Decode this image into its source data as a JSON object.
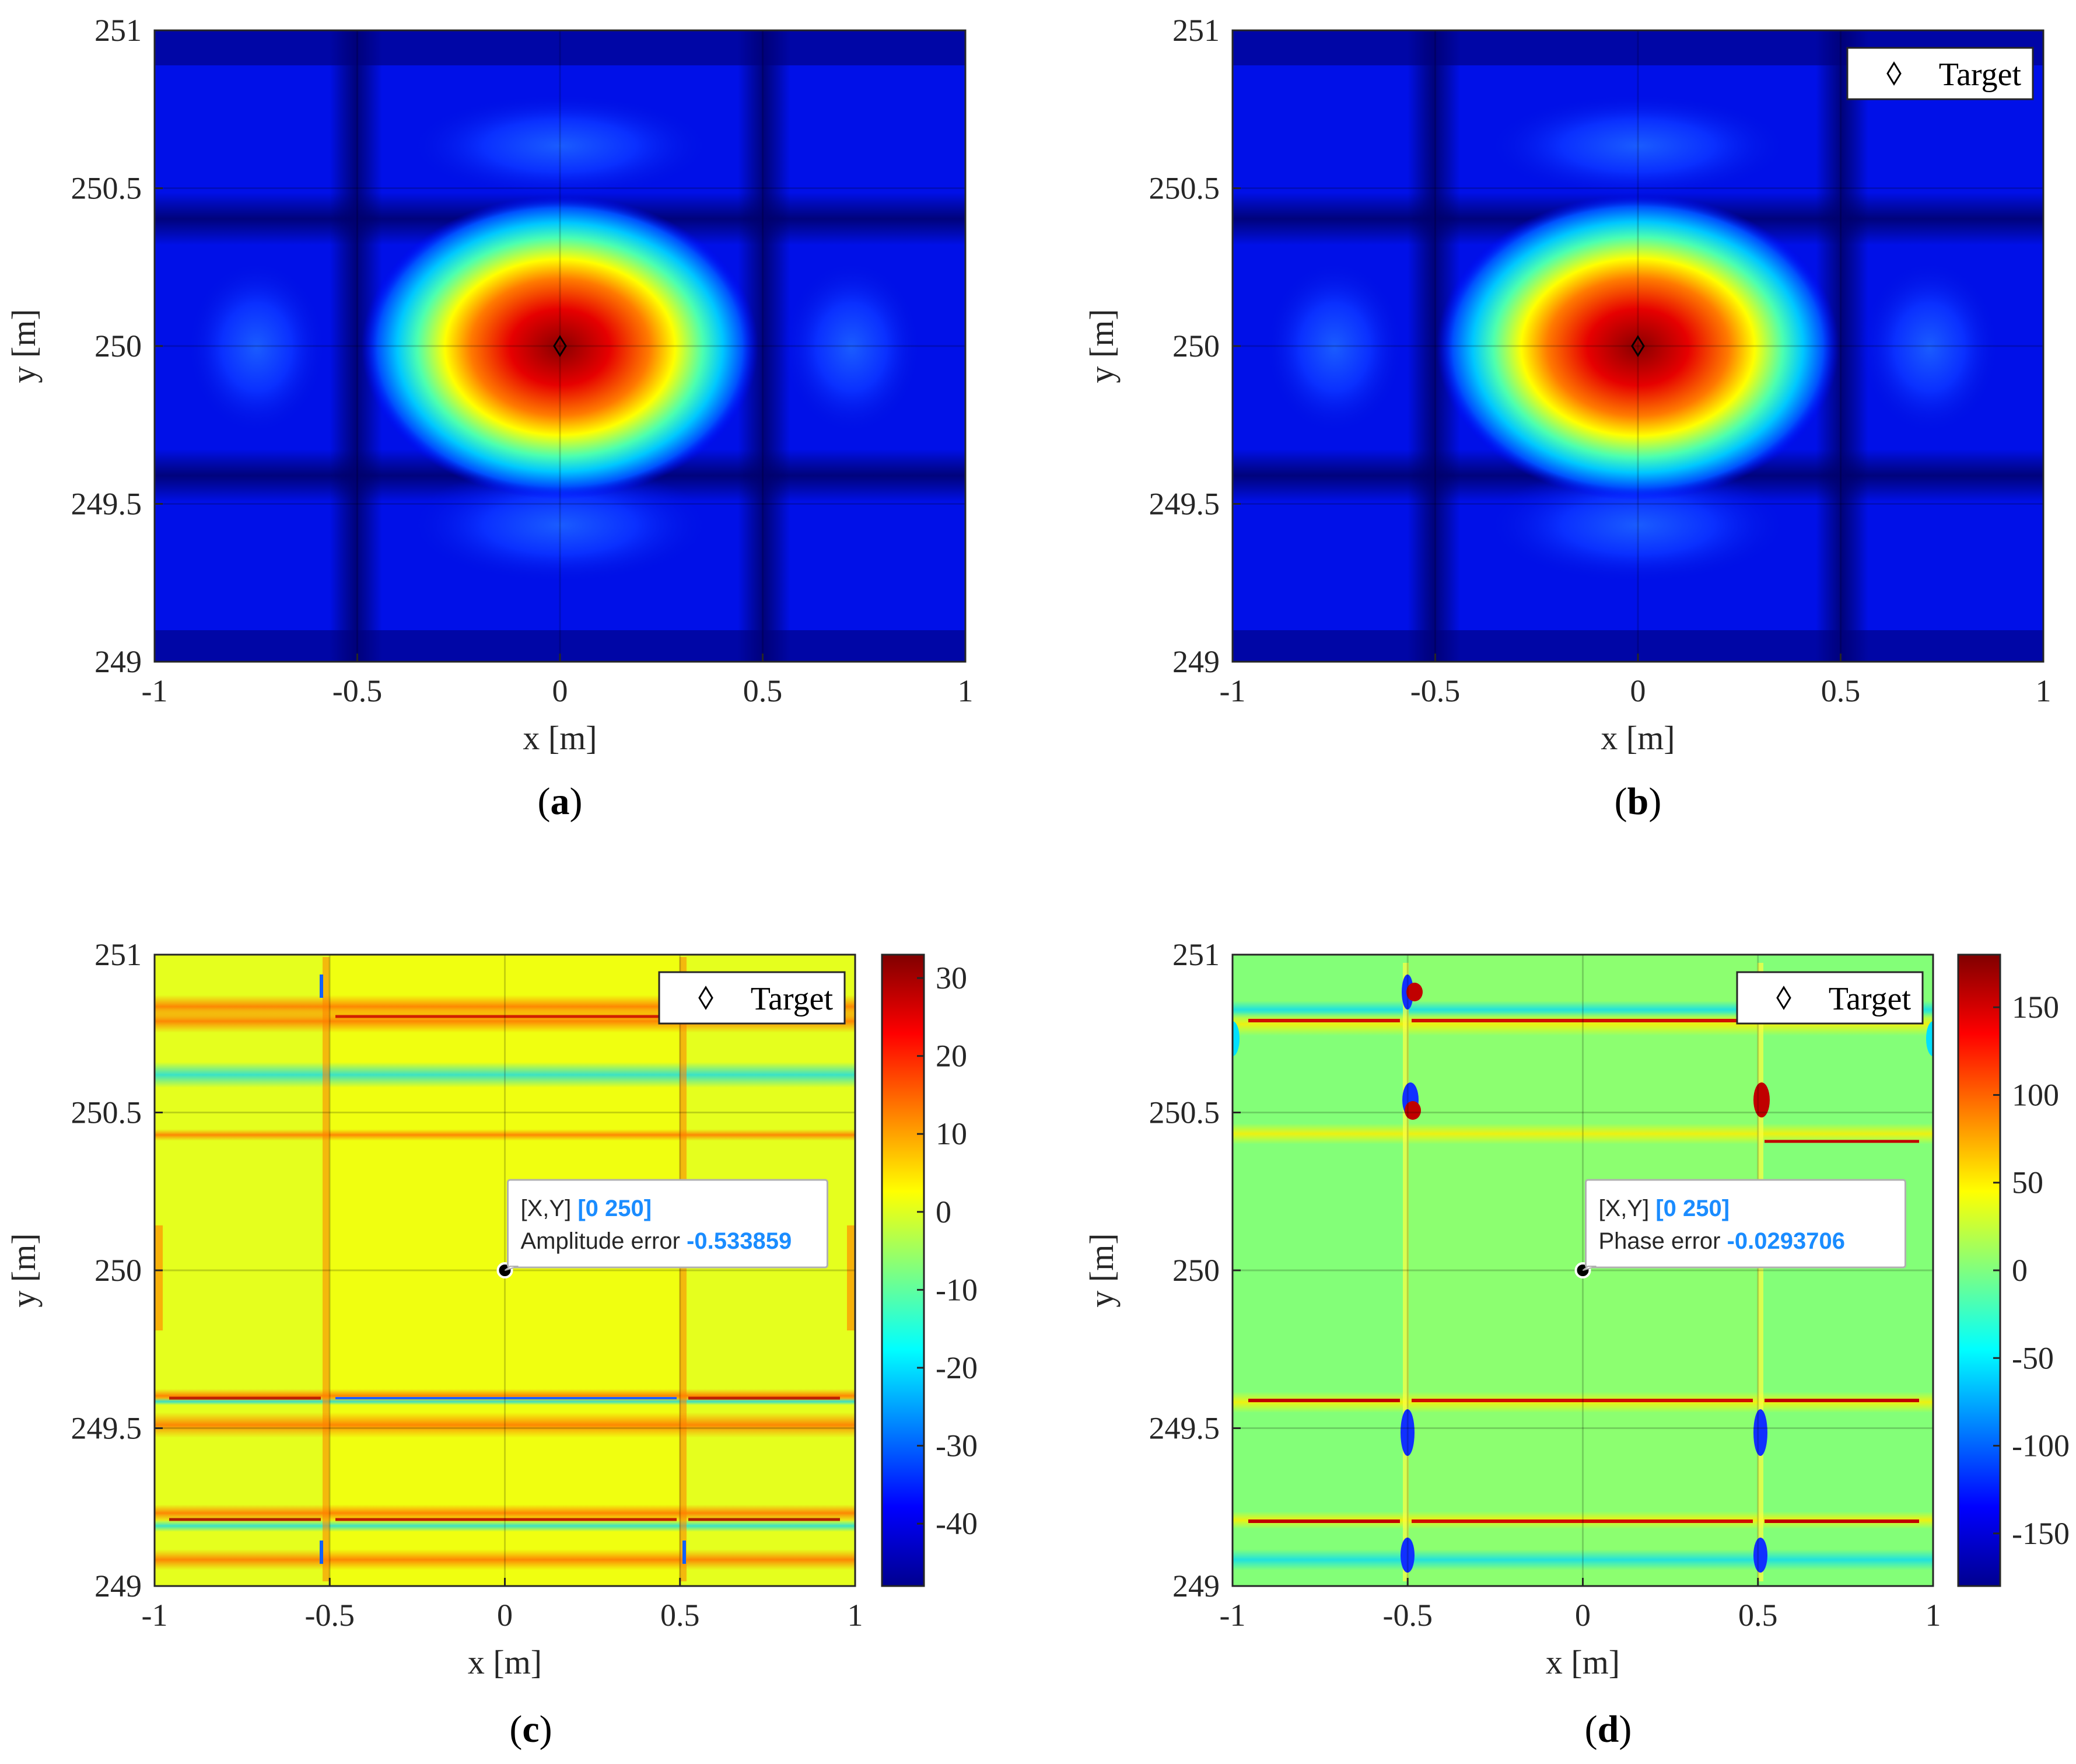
{
  "chart_data": [
    {
      "id": "a",
      "type": "heatmap",
      "panel_label": "a",
      "xlabel": "x [m]",
      "ylabel": "y [m]",
      "xlim": [
        -1,
        1
      ],
      "ylim": [
        249,
        251
      ],
      "xticks": [
        -1,
        -0.5,
        0,
        0.5,
        1
      ],
      "xtick_labels": [
        "-1",
        "-0.5",
        "0",
        "0.5",
        "1"
      ],
      "yticks": [
        249,
        249.5,
        250,
        250.5,
        251
      ],
      "ytick_labels": [
        "249",
        "249.5",
        "250",
        "250.5",
        "251"
      ],
      "colormap": "jet",
      "target": {
        "x": 0,
        "y": 250
      },
      "legend": null,
      "colorbar": null,
      "datatip": null
    },
    {
      "id": "b",
      "type": "heatmap",
      "panel_label": "b",
      "xlabel": "x [m]",
      "ylabel": "y [m]",
      "xlim": [
        -1,
        1
      ],
      "ylim": [
        249,
        251
      ],
      "xticks": [
        -1,
        -0.5,
        0,
        0.5,
        1
      ],
      "xtick_labels": [
        "-1",
        "-0.5",
        "0",
        "0.5",
        "1"
      ],
      "yticks": [
        249,
        249.5,
        250,
        250.5,
        251
      ],
      "ytick_labels": [
        "249",
        "249.5",
        "250",
        "250.5",
        "251"
      ],
      "colormap": "jet",
      "target": {
        "x": 0,
        "y": 250
      },
      "legend": {
        "label": "Target",
        "position": "top-right"
      },
      "colorbar": null,
      "datatip": null
    },
    {
      "id": "c",
      "type": "heatmap",
      "panel_label": "c",
      "xlabel": "x [m]",
      "ylabel": "y [m]",
      "xlim": [
        -1,
        1
      ],
      "ylim": [
        249,
        251
      ],
      "xticks": [
        -1,
        -0.5,
        0,
        0.5,
        1
      ],
      "xtick_labels": [
        "-1",
        "-0.5",
        "0",
        "0.5",
        "1"
      ],
      "yticks": [
        249,
        249.5,
        250,
        250.5,
        251
      ],
      "ytick_labels": [
        "249",
        "249.5",
        "250",
        "250.5",
        "251"
      ],
      "colormap": "jet",
      "target": {
        "x": 0,
        "y": 250
      },
      "legend": {
        "label": "Target",
        "position": "top-right"
      },
      "colorbar": {
        "range": [
          -48,
          33
        ],
        "ticks": [
          30,
          20,
          10,
          0,
          -10,
          -20,
          -30,
          -40
        ],
        "tick_labels": [
          "30",
          "20",
          "10",
          "0",
          "-10",
          "-20",
          "-30",
          "-40"
        ]
      },
      "datatip": {
        "xy_label": "[X,Y]",
        "xy_value": "[0 250]",
        "name": "Amplitude error",
        "value": "-0.533859"
      }
    },
    {
      "id": "d",
      "type": "heatmap",
      "panel_label": "d",
      "xlabel": "x [m]",
      "ylabel": "y [m]",
      "xlim": [
        -1,
        1
      ],
      "ylim": [
        249,
        251
      ],
      "xticks": [
        -1,
        -0.5,
        0,
        0.5,
        1
      ],
      "xtick_labels": [
        "-1",
        "-0.5",
        "0",
        "0.5",
        "1"
      ],
      "yticks": [
        249,
        249.5,
        250,
        250.5,
        251
      ],
      "ytick_labels": [
        "249",
        "249.5",
        "250",
        "250.5",
        "251"
      ],
      "colormap": "jet",
      "target": {
        "x": 0,
        "y": 250
      },
      "legend": {
        "label": "Target",
        "position": "top-right"
      },
      "colorbar": {
        "range": [
          -180,
          180
        ],
        "ticks": [
          150,
          100,
          50,
          0,
          -50,
          -100,
          -150
        ],
        "tick_labels": [
          "150",
          "100",
          "50",
          "0",
          "-50",
          "-100",
          "-150"
        ]
      },
      "datatip": {
        "xy_label": "[X,Y]",
        "xy_value": "[0 250]",
        "name": "Phase error",
        "value": "-0.0293706"
      }
    }
  ],
  "colors": {
    "jet_dark_blue": "#00008f",
    "jet_blue": "#0000ff",
    "jet_cyan": "#00ffff",
    "jet_yellow": "#ffff00",
    "jet_red": "#ff0000",
    "jet_dark_red": "#800000",
    "datatip_value": "#1a8cff",
    "axis_line": "#262626"
  }
}
